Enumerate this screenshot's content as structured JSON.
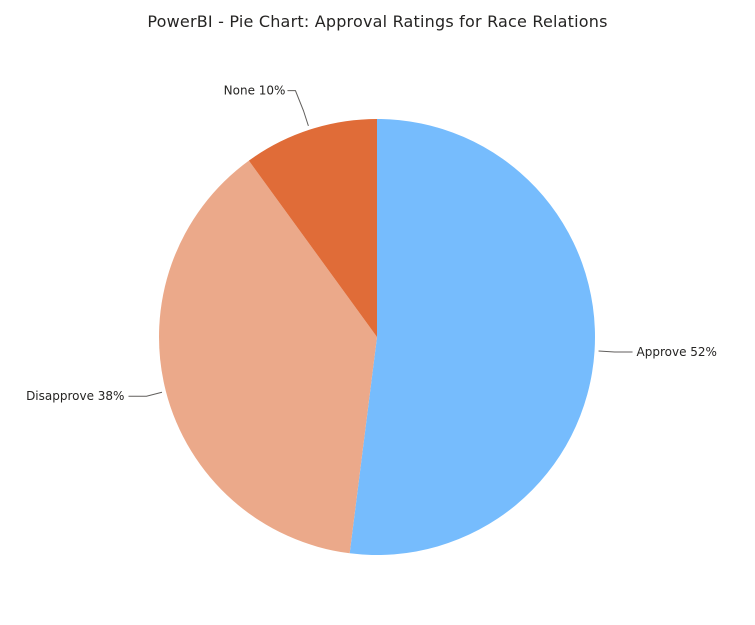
{
  "chart_data": {
    "type": "pie",
    "title": "PowerBI - Pie Chart: Approval Ratings for Race Relations",
    "slices": [
      {
        "name": "Approve",
        "value": 52,
        "label": "Approve 52%",
        "color": "#76BCFD"
      },
      {
        "name": "Disapprove",
        "value": 38,
        "label": "Disapprove 38%",
        "color": "#EBA98A"
      },
      {
        "name": "None",
        "value": 10,
        "label": "None 10%",
        "color": "#E06C38"
      }
    ],
    "start": "12 o'clock",
    "direction": "clockwise",
    "legend": "none"
  }
}
